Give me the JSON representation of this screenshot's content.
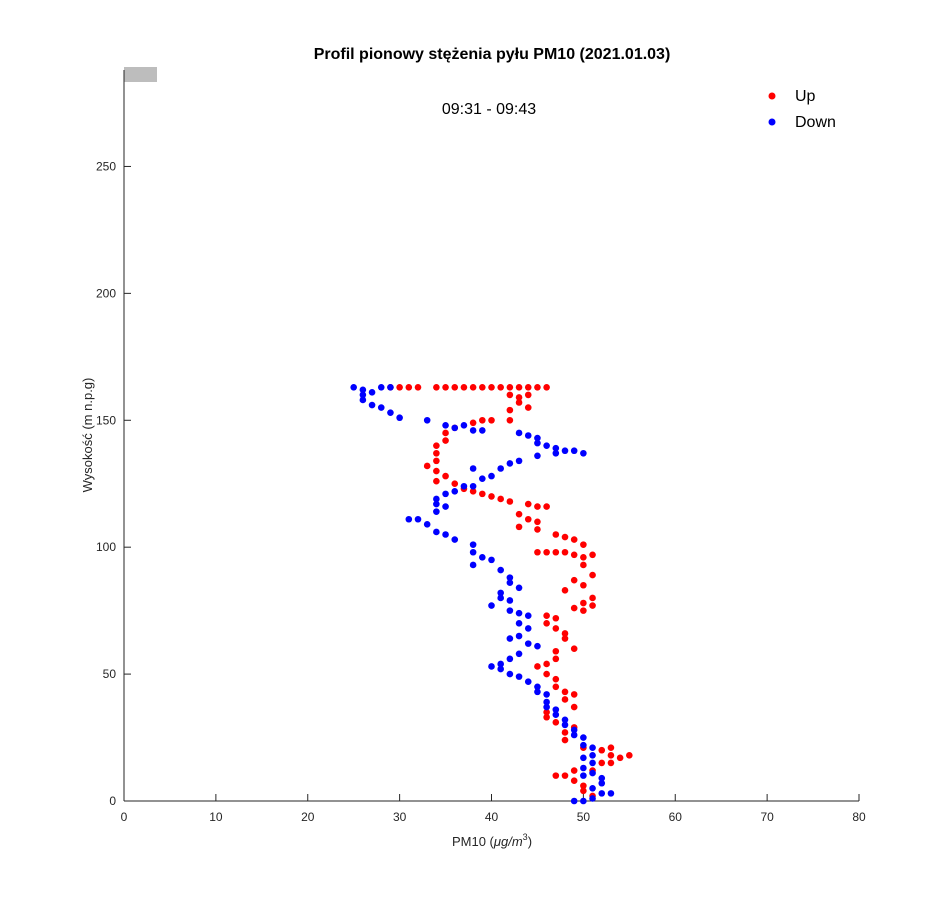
{
  "chart_data": {
    "type": "scatter",
    "title": "Profil pionowy stężenia pyłu PM10 (2021.01.03)",
    "subtitle": "09:31 - 09:43",
    "xlabel_main": "PM10 (",
    "xlabel_unit": "μg/m",
    "xlabel_sup": "3",
    "xlabel_end": ")",
    "ylabel": "Wysokość (m n.p.g)",
    "xlim": [
      0,
      80
    ],
    "ylim": [
      0,
      288
    ],
    "xticks": [
      "0",
      "10",
      "20",
      "30",
      "40",
      "50",
      "60",
      "70",
      "80"
    ],
    "yticks": [
      "0",
      "50",
      "100",
      "150",
      "200",
      "250"
    ],
    "grid": false,
    "legend_position": "top-right",
    "series": [
      {
        "name": "Up",
        "color": "#ff0000",
        "points": [
          [
            29,
            163
          ],
          [
            30,
            163
          ],
          [
            31,
            163
          ],
          [
            32,
            163
          ],
          [
            34,
            163
          ],
          [
            35,
            163
          ],
          [
            36,
            163
          ],
          [
            37,
            163
          ],
          [
            38,
            163
          ],
          [
            39,
            163
          ],
          [
            40,
            163
          ],
          [
            41,
            163
          ],
          [
            42,
            163
          ],
          [
            43,
            163
          ],
          [
            44,
            163
          ],
          [
            45,
            163
          ],
          [
            46,
            163
          ],
          [
            42,
            160
          ],
          [
            43,
            159
          ],
          [
            44,
            160
          ],
          [
            43,
            157
          ],
          [
            44,
            155
          ],
          [
            42,
            154
          ],
          [
            42,
            150
          ],
          [
            39,
            150
          ],
          [
            40,
            150
          ],
          [
            38,
            149
          ],
          [
            36,
            147
          ],
          [
            35,
            145
          ],
          [
            35,
            142
          ],
          [
            34,
            140
          ],
          [
            34,
            137
          ],
          [
            34,
            134
          ],
          [
            33,
            132
          ],
          [
            34,
            130
          ],
          [
            35,
            128
          ],
          [
            34,
            126
          ],
          [
            36,
            125
          ],
          [
            37,
            123
          ],
          [
            38,
            122
          ],
          [
            39,
            121
          ],
          [
            40,
            120
          ],
          [
            41,
            119
          ],
          [
            42,
            118
          ],
          [
            44,
            117
          ],
          [
            45,
            116
          ],
          [
            46,
            116
          ],
          [
            43,
            113
          ],
          [
            44,
            111
          ],
          [
            45,
            110
          ],
          [
            43,
            108
          ],
          [
            45,
            107
          ],
          [
            47,
            105
          ],
          [
            48,
            104
          ],
          [
            49,
            103
          ],
          [
            50,
            101
          ],
          [
            45,
            98
          ],
          [
            46,
            98
          ],
          [
            47,
            98
          ],
          [
            48,
            98
          ],
          [
            49,
            97
          ],
          [
            50,
            96
          ],
          [
            51,
            97
          ],
          [
            50,
            93
          ],
          [
            51,
            89
          ],
          [
            49,
            87
          ],
          [
            50,
            85
          ],
          [
            48,
            83
          ],
          [
            51,
            80
          ],
          [
            50,
            78
          ],
          [
            49,
            76
          ],
          [
            50,
            75
          ],
          [
            51,
            77
          ],
          [
            46,
            73
          ],
          [
            47,
            72
          ],
          [
            46,
            70
          ],
          [
            47,
            68
          ],
          [
            48,
            66
          ],
          [
            48,
            64
          ],
          [
            49,
            60
          ],
          [
            47,
            59
          ],
          [
            47,
            56
          ],
          [
            46,
            54
          ],
          [
            45,
            53
          ],
          [
            46,
            50
          ],
          [
            47,
            48
          ],
          [
            47,
            45
          ],
          [
            48,
            43
          ],
          [
            48,
            40
          ],
          [
            49,
            42
          ],
          [
            49,
            37
          ],
          [
            46,
            35
          ],
          [
            46,
            33
          ],
          [
            47,
            31
          ],
          [
            49,
            29
          ],
          [
            48,
            27
          ],
          [
            48,
            24
          ],
          [
            50,
            21
          ],
          [
            53,
            21
          ],
          [
            52,
            20
          ],
          [
            53,
            18
          ],
          [
            54,
            17
          ],
          [
            55,
            18
          ],
          [
            52,
            15
          ],
          [
            53,
            15
          ],
          [
            51,
            12
          ],
          [
            49,
            12
          ],
          [
            47,
            10
          ],
          [
            48,
            10
          ],
          [
            49,
            8
          ],
          [
            50,
            6
          ],
          [
            50,
            4
          ],
          [
            51,
            2
          ]
        ]
      },
      {
        "name": "Down",
        "color": "#0000ff",
        "points": [
          [
            25,
            163
          ],
          [
            26,
            162
          ],
          [
            26,
            160
          ],
          [
            27,
            161
          ],
          [
            28,
            163
          ],
          [
            29,
            163
          ],
          [
            26,
            158
          ],
          [
            27,
            156
          ],
          [
            28,
            155
          ],
          [
            29,
            153
          ],
          [
            30,
            151
          ],
          [
            33,
            150
          ],
          [
            35,
            148
          ],
          [
            36,
            147
          ],
          [
            37,
            148
          ],
          [
            38,
            146
          ],
          [
            39,
            146
          ],
          [
            43,
            145
          ],
          [
            44,
            144
          ],
          [
            45,
            143
          ],
          [
            45,
            141
          ],
          [
            46,
            140
          ],
          [
            47,
            139
          ],
          [
            48,
            138
          ],
          [
            49,
            138
          ],
          [
            50,
            137
          ],
          [
            45,
            136
          ],
          [
            47,
            137
          ],
          [
            42,
            133
          ],
          [
            43,
            134
          ],
          [
            41,
            131
          ],
          [
            38,
            131
          ],
          [
            40,
            128
          ],
          [
            39,
            127
          ],
          [
            38,
            124
          ],
          [
            37,
            124
          ],
          [
            36,
            122
          ],
          [
            35,
            121
          ],
          [
            34,
            119
          ],
          [
            34,
            117
          ],
          [
            35,
            116
          ],
          [
            34,
            114
          ],
          [
            32,
            111
          ],
          [
            31,
            111
          ],
          [
            33,
            109
          ],
          [
            34,
            106
          ],
          [
            35,
            105
          ],
          [
            36,
            103
          ],
          [
            38,
            101
          ],
          [
            38,
            98
          ],
          [
            39,
            96
          ],
          [
            40,
            95
          ],
          [
            38,
            93
          ],
          [
            41,
            91
          ],
          [
            42,
            88
          ],
          [
            42,
            86
          ],
          [
            43,
            84
          ],
          [
            41,
            82
          ],
          [
            41,
            80
          ],
          [
            42,
            79
          ],
          [
            40,
            77
          ],
          [
            42,
            75
          ],
          [
            43,
            74
          ],
          [
            44,
            73
          ],
          [
            43,
            70
          ],
          [
            44,
            68
          ],
          [
            43,
            65
          ],
          [
            42,
            64
          ],
          [
            44,
            62
          ],
          [
            45,
            61
          ],
          [
            43,
            58
          ],
          [
            42,
            56
          ],
          [
            41,
            54
          ],
          [
            40,
            53
          ],
          [
            41,
            52
          ],
          [
            42,
            50
          ],
          [
            43,
            49
          ],
          [
            44,
            47
          ],
          [
            45,
            45
          ],
          [
            45,
            43
          ],
          [
            46,
            42
          ],
          [
            46,
            39
          ],
          [
            46,
            37
          ],
          [
            47,
            36
          ],
          [
            47,
            34
          ],
          [
            48,
            32
          ],
          [
            48,
            30
          ],
          [
            49,
            28
          ],
          [
            49,
            26
          ],
          [
            50,
            25
          ],
          [
            50,
            22
          ],
          [
            51,
            21
          ],
          [
            51,
            18
          ],
          [
            50,
            17
          ],
          [
            51,
            15
          ],
          [
            50,
            13
          ],
          [
            51,
            11
          ],
          [
            50,
            10
          ],
          [
            52,
            9
          ],
          [
            52,
            7
          ],
          [
            51,
            5
          ],
          [
            52,
            3
          ],
          [
            53,
            3
          ],
          [
            51,
            1
          ],
          [
            49,
            0
          ],
          [
            50,
            0
          ]
        ]
      }
    ]
  }
}
